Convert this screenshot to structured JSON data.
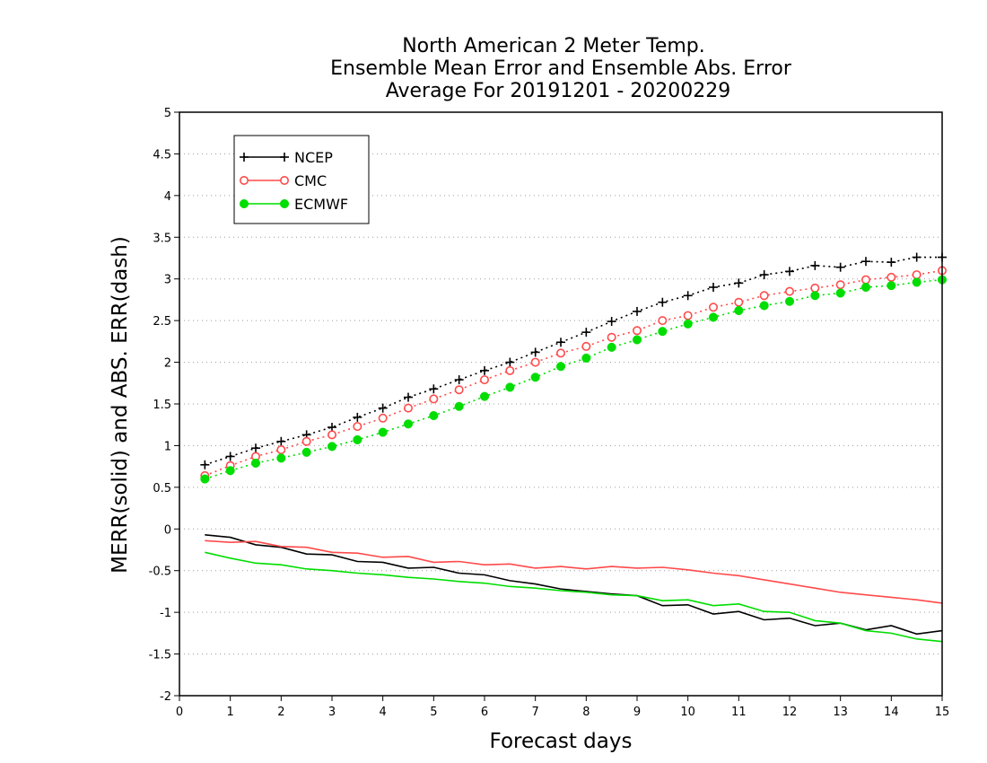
{
  "chart_data": {
    "type": "line",
    "title_lines": [
      "North American 2 Meter Temp.",
      "Ensemble Mean Error and Ensemble Abs. Error",
      "Average For 20191201 - 20200229"
    ],
    "xlabel": "Forecast days",
    "ylabel": "MERR(solid) and ABS. ERR(dash)",
    "xlim": [
      0,
      15
    ],
    "ylim": [
      -2,
      5
    ],
    "x_ticks": [
      0,
      1,
      2,
      3,
      4,
      5,
      6,
      7,
      8,
      9,
      10,
      11,
      12,
      13,
      14,
      15
    ],
    "x_tick_labels": [
      "0",
      "1",
      "2",
      "3",
      "4",
      "5",
      "6",
      "7",
      "8",
      "9",
      "10",
      "11",
      "12",
      "13",
      "14",
      "15"
    ],
    "y_ticks": [
      -2,
      -1.5,
      -1,
      -0.5,
      0,
      0.5,
      1,
      1.5,
      2,
      2.5,
      3,
      3.5,
      4,
      4.5,
      5
    ],
    "y_tick_labels": [
      "-2",
      "-1.5",
      "-1",
      "-0.5",
      "0",
      "0.5",
      "1",
      "1.5",
      "2",
      "2.5",
      "3",
      "3.5",
      "4",
      "4.5",
      "5"
    ],
    "grid": "horizontal dotted",
    "legend_position": "top-left",
    "x": [
      0.5,
      1,
      1.5,
      2,
      2.5,
      3,
      3.5,
      4,
      4.5,
      5,
      5.5,
      6,
      6.5,
      7,
      7.5,
      8,
      8.5,
      9,
      9.5,
      10,
      10.5,
      11,
      11.5,
      12,
      12.5,
      13,
      13.5,
      14,
      14.5,
      15
    ],
    "series": [
      {
        "name": "NCEP",
        "color": "#000000",
        "marker": "plus",
        "merr": [
          -0.07,
          -0.1,
          -0.19,
          -0.22,
          -0.3,
          -0.31,
          -0.39,
          -0.4,
          -0.47,
          -0.46,
          -0.53,
          -0.55,
          -0.62,
          -0.66,
          -0.72,
          -0.75,
          -0.78,
          -0.8,
          -0.92,
          -0.91,
          -1.02,
          -0.99,
          -1.09,
          -1.07,
          -1.16,
          -1.13,
          -1.21,
          -1.16,
          -1.26,
          -1.22
        ],
        "abs_err": [
          0.77,
          0.87,
          0.97,
          1.05,
          1.13,
          1.22,
          1.34,
          1.45,
          1.58,
          1.68,
          1.79,
          1.9,
          2.0,
          2.12,
          2.24,
          2.36,
          2.49,
          2.61,
          2.72,
          2.8,
          2.9,
          2.95,
          3.05,
          3.09,
          3.16,
          3.14,
          3.21,
          3.2,
          3.26,
          3.26
        ]
      },
      {
        "name": "CMC",
        "color": "#ff4a4a",
        "marker": "open-circle",
        "merr": [
          -0.14,
          -0.16,
          -0.15,
          -0.21,
          -0.22,
          -0.28,
          -0.29,
          -0.34,
          -0.33,
          -0.4,
          -0.39,
          -0.43,
          -0.42,
          -0.47,
          -0.45,
          -0.48,
          -0.45,
          -0.47,
          -0.46,
          -0.49,
          -0.53,
          -0.56,
          -0.61,
          -0.66,
          -0.71,
          -0.76,
          -0.79,
          -0.82,
          -0.85,
          -0.89
        ],
        "abs_err": [
          0.64,
          0.76,
          0.87,
          0.95,
          1.05,
          1.13,
          1.23,
          1.33,
          1.45,
          1.56,
          1.67,
          1.79,
          1.9,
          2.0,
          2.11,
          2.19,
          2.3,
          2.38,
          2.5,
          2.56,
          2.66,
          2.72,
          2.8,
          2.85,
          2.89,
          2.93,
          2.99,
          3.02,
          3.05,
          3.1
        ]
      },
      {
        "name": "ECMWF",
        "color": "#00dd00",
        "marker": "filled-circle",
        "merr": [
          -0.28,
          -0.35,
          -0.41,
          -0.43,
          -0.48,
          -0.5,
          -0.53,
          -0.55,
          -0.58,
          -0.6,
          -0.63,
          -0.65,
          -0.69,
          -0.71,
          -0.74,
          -0.76,
          -0.79,
          -0.8,
          -0.86,
          -0.85,
          -0.92,
          -0.9,
          -0.99,
          -1.0,
          -1.1,
          -1.13,
          -1.22,
          -1.25,
          -1.32,
          -1.35
        ],
        "abs_err": [
          0.6,
          0.7,
          0.79,
          0.85,
          0.92,
          0.99,
          1.07,
          1.16,
          1.26,
          1.36,
          1.47,
          1.59,
          1.7,
          1.82,
          1.95,
          2.05,
          2.18,
          2.27,
          2.37,
          2.46,
          2.54,
          2.62,
          2.68,
          2.73,
          2.8,
          2.83,
          2.9,
          2.92,
          2.96,
          2.99
        ]
      }
    ]
  }
}
